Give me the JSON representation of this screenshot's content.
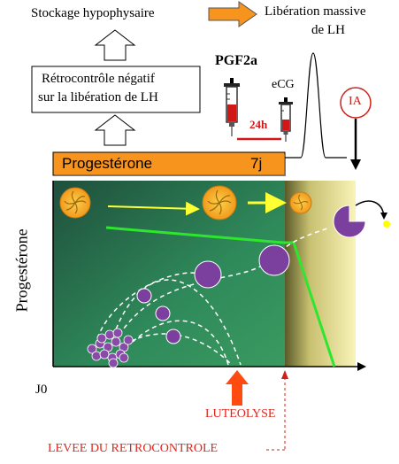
{
  "top": {
    "stockage": "Stockage hypophysaire",
    "liberation_line1": "Libération massive",
    "liberation_line2": "de LH"
  },
  "feedback_box": {
    "line1": "Rétrocontrôle négatif",
    "line2": "sur la libération de LH"
  },
  "injections": {
    "pgf2a": "PGF2a",
    "ecg": "eCG",
    "delay": "24h"
  },
  "ia": "IA",
  "progesterone_bar": {
    "label": "Progestérone",
    "duration": "7j"
  },
  "axes": {
    "y_label": "Progestérone",
    "x_origin": "J0"
  },
  "annotations": {
    "luteolyse": "LUTEOLYSE",
    "levee": "LEVEE DU RETROCONTROLE"
  },
  "colors": {
    "orange": "#f7941d",
    "green_dark": "#1f5a3a",
    "green_mid": "#2e8b57",
    "yellow_panel": "#f2ec9a",
    "follicle": "#7b3f9e",
    "green_line": "#2ee62e",
    "arrow_yellow": "#ffff33",
    "red": "#e0251b"
  }
}
